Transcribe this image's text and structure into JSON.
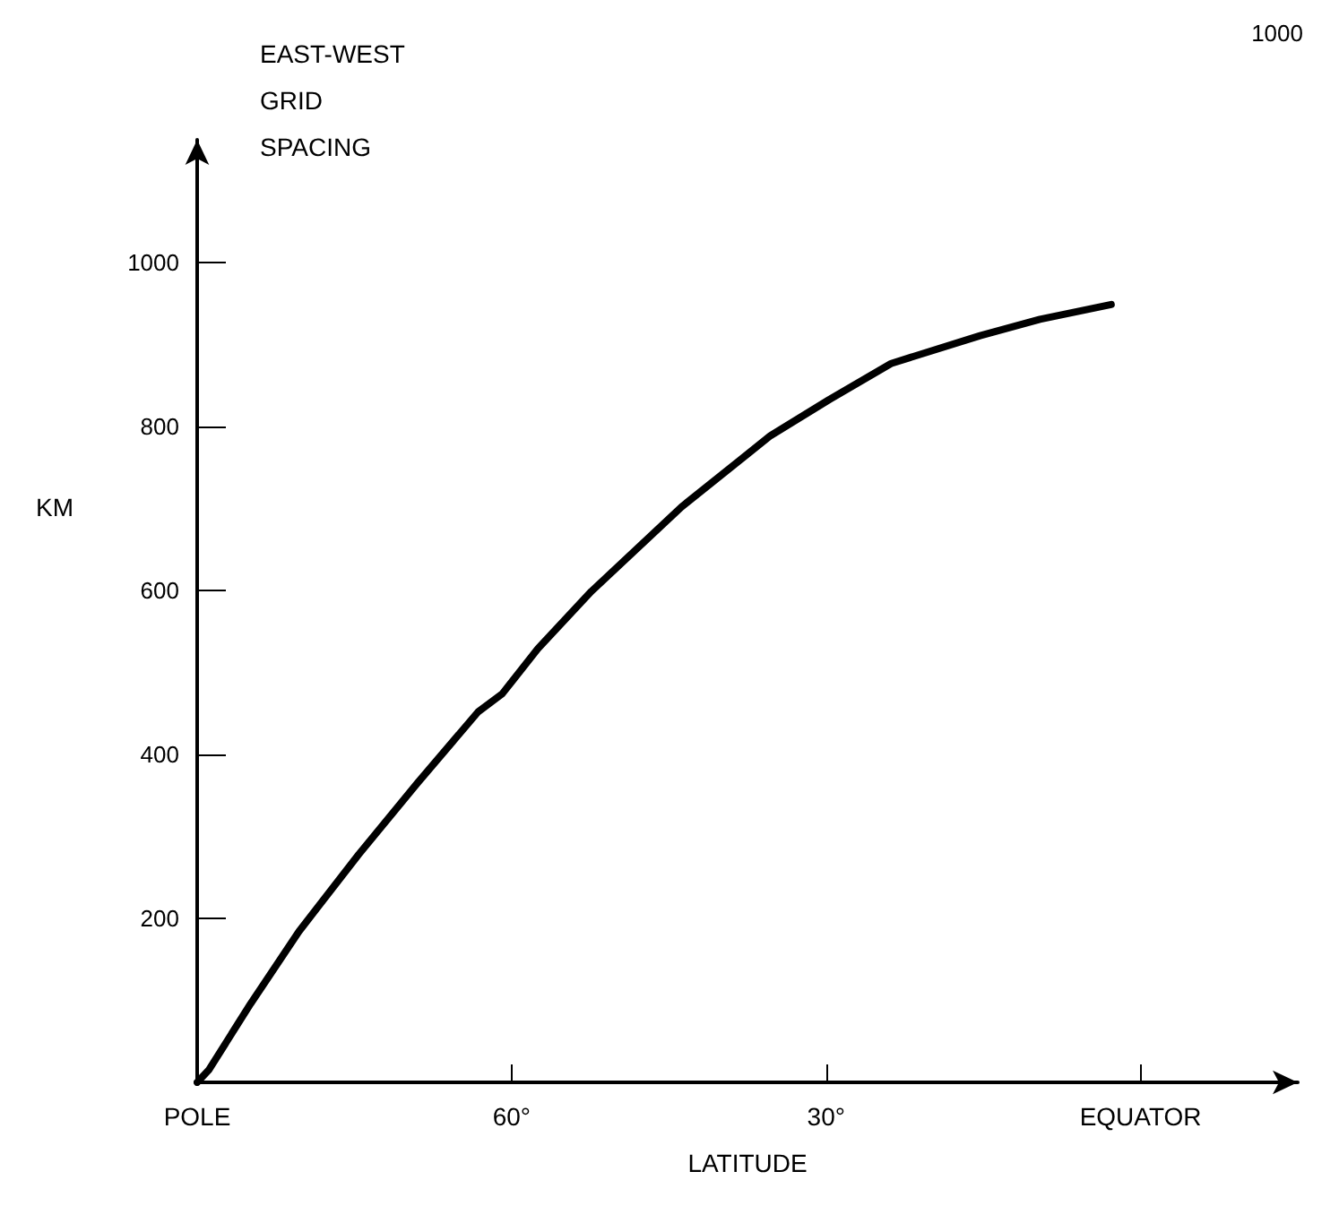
{
  "chart_data": {
    "type": "line",
    "title": "EAST-WEST GRID SPACING",
    "xlabel": "LATITUDE",
    "ylabel": "KM",
    "annotations": [
      "1000"
    ],
    "x": [
      90,
      88.9,
      84.9,
      80.3,
      74.6,
      69.0,
      63.2,
      60.9,
      57.5,
      52.4,
      43.8,
      35.3,
      29.7,
      23.8,
      15.3,
      9.6,
      2.8
    ],
    "series": [
      {
        "color": "#000000",
        "values": [
          0,
          15,
          96,
          184,
          278,
          365,
          452,
          474,
          529,
          599,
          702,
          789,
          833,
          877,
          911,
          931,
          949
        ]
      }
    ],
    "xlim": [
      90,
      -15
    ],
    "ylim": [
      0,
      1150
    ],
    "xticks": [
      {
        "value": 90,
        "label": "POLE"
      },
      {
        "value": 60,
        "label": "60°"
      },
      {
        "value": 30,
        "label": "30°"
      },
      {
        "value": 0,
        "label": "EQUATOR"
      }
    ],
    "yticks": [
      200,
      400,
      600,
      800,
      1000
    ],
    "marker": "none",
    "line_style": "solid"
  }
}
